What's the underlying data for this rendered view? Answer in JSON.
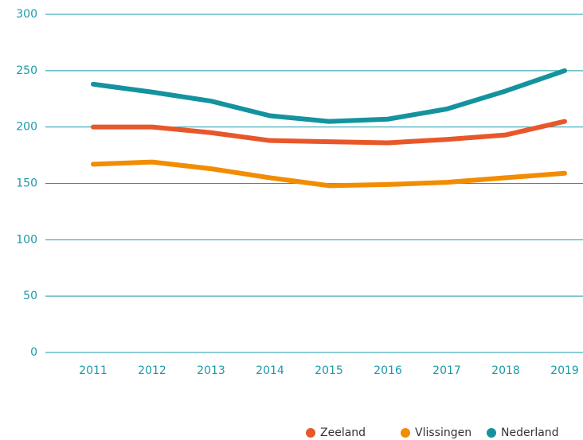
{
  "chart_data": {
    "type": "line",
    "categories": [
      "2011",
      "2012",
      "2013",
      "2014",
      "2015",
      "2016",
      "2017",
      "2018",
      "2019"
    ],
    "series": [
      {
        "name": "Zeeland",
        "color": "#e8572a",
        "values": [
          200,
          200,
          195,
          188,
          187,
          186,
          189,
          193,
          205
        ]
      },
      {
        "name": "Vlissingen",
        "color": "#f28c00",
        "values": [
          167,
          169,
          163,
          155,
          148,
          149,
          151,
          155,
          159
        ]
      },
      {
        "name": "Nederland",
        "color": "#14939f",
        "values": [
          238,
          231,
          223,
          210,
          205,
          207,
          216,
          232,
          250
        ]
      }
    ],
    "ylim": [
      0,
      300
    ],
    "yticks": [
      0,
      50,
      100,
      150,
      200,
      250,
      300
    ],
    "grid": true,
    "legend": "bottom"
  }
}
